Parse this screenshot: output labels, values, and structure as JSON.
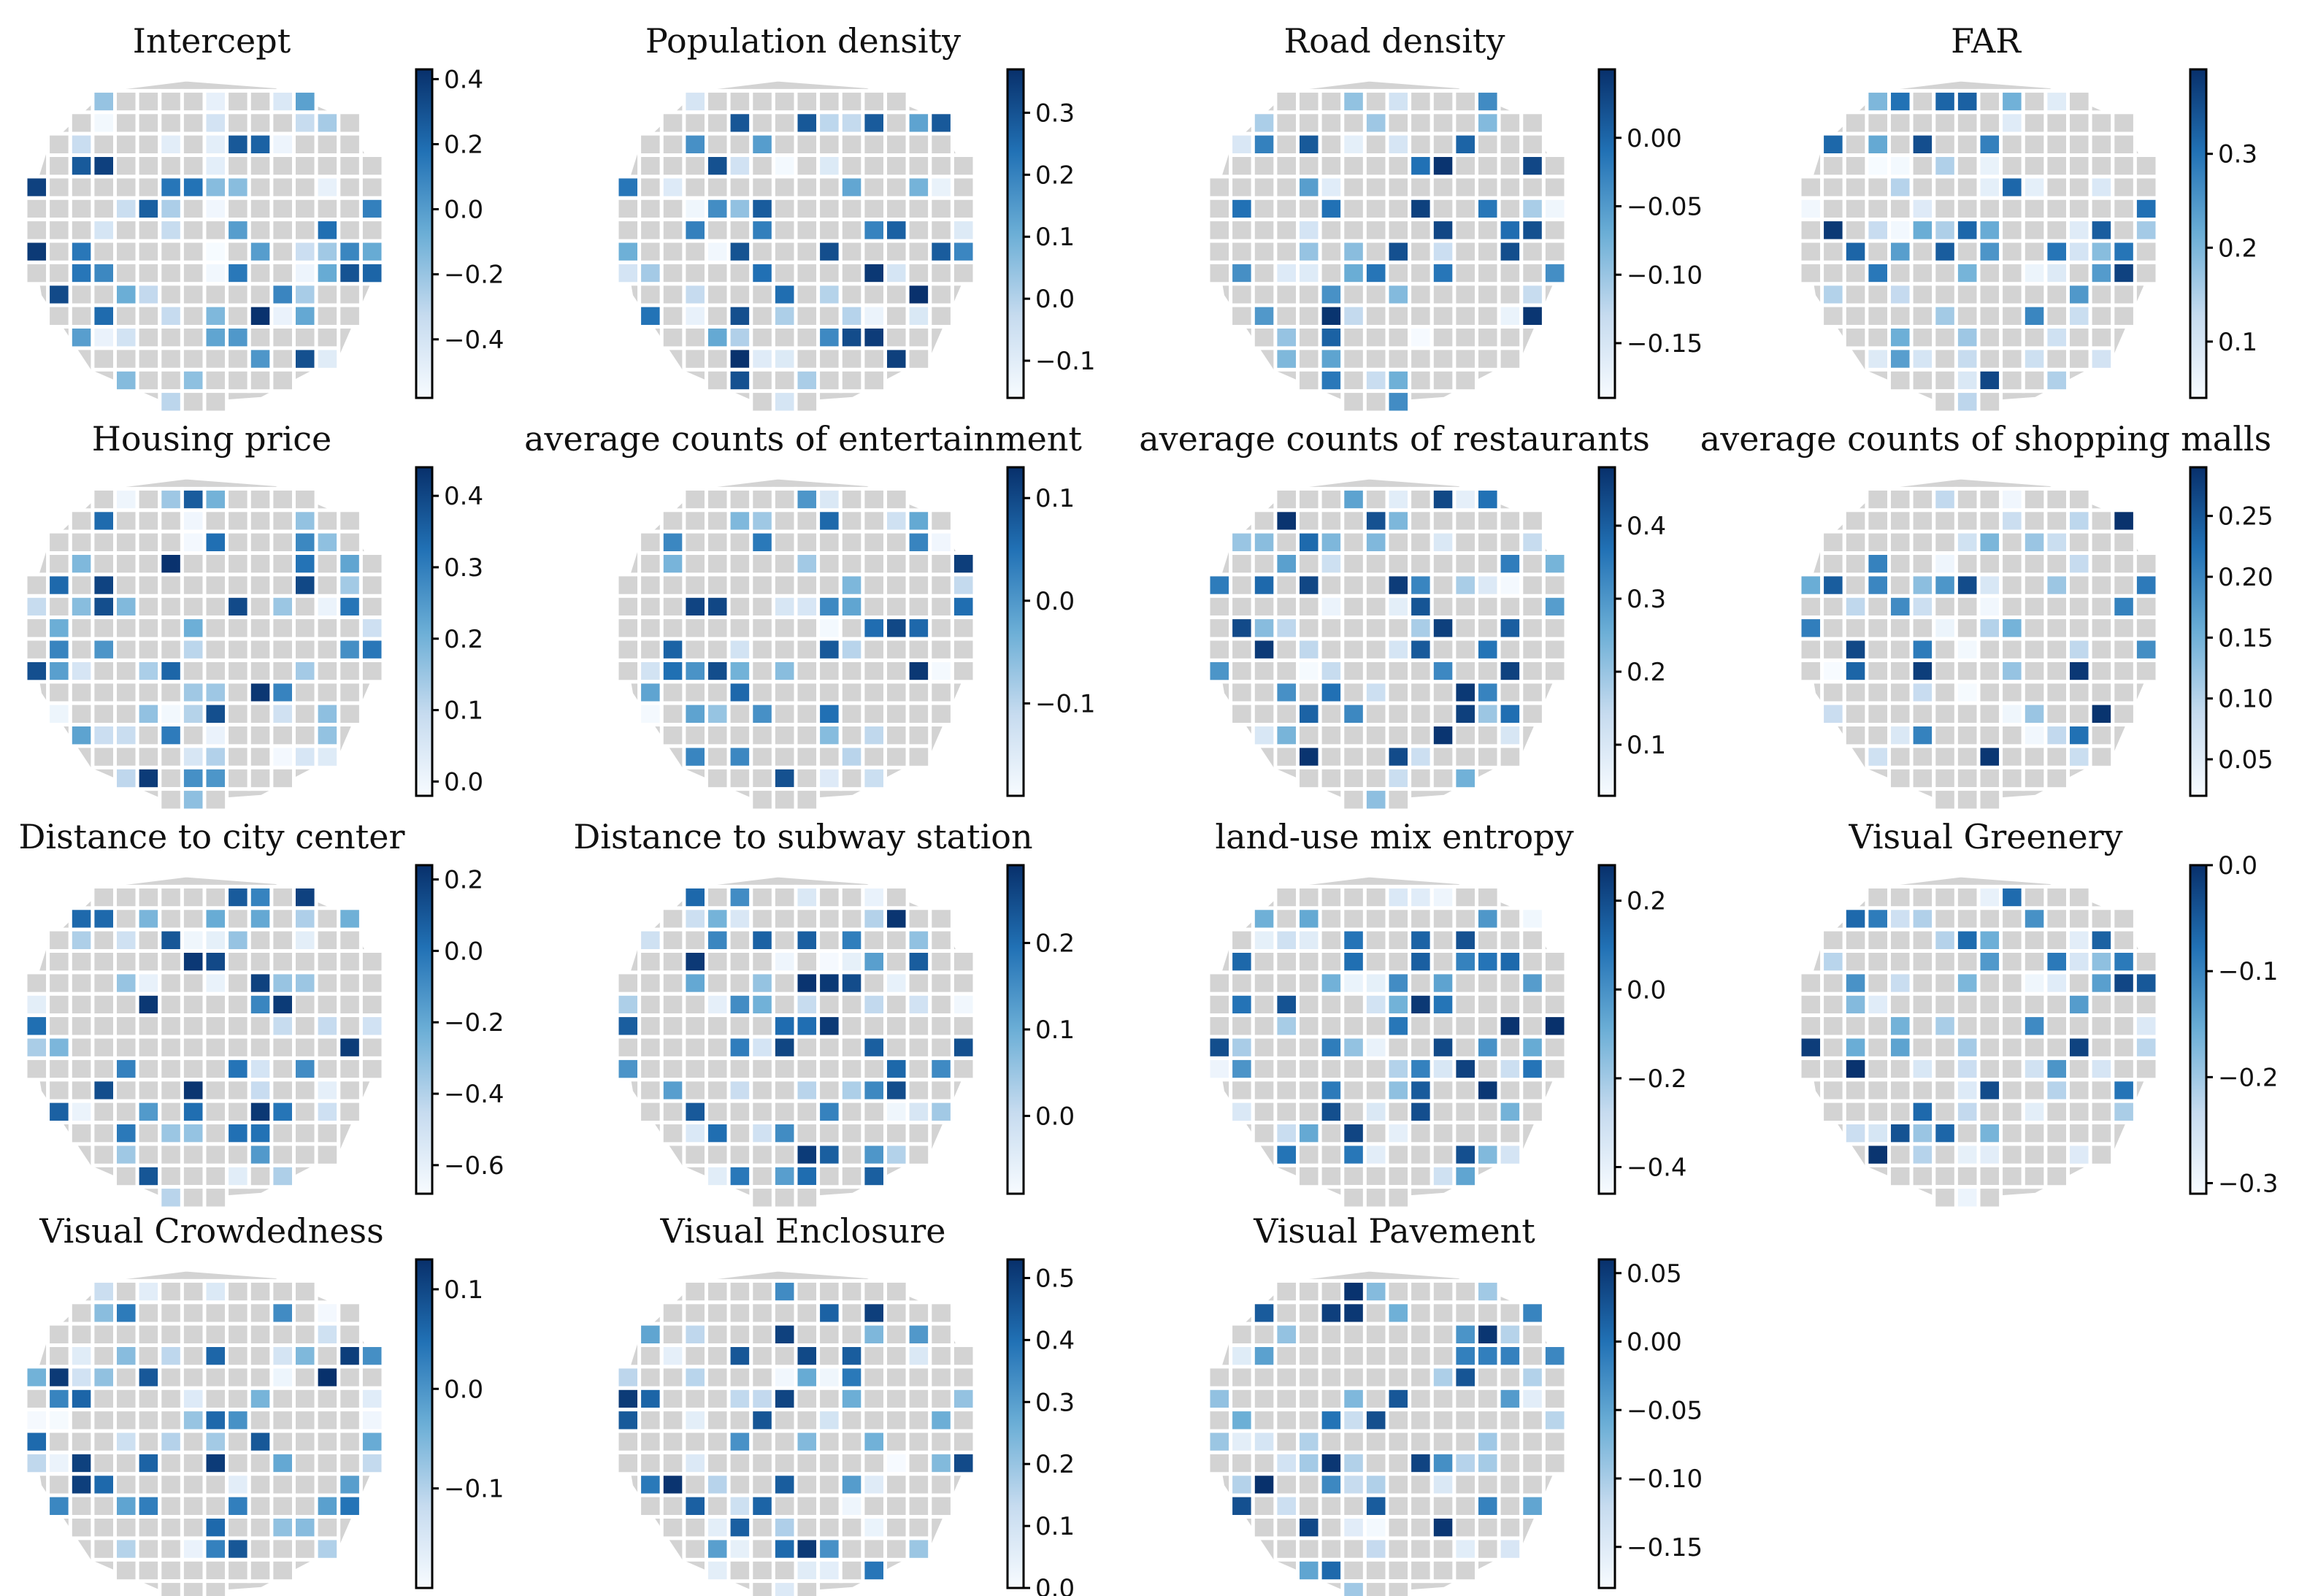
{
  "figure": {
    "description_free": true,
    "colormap": {
      "name": "Blues",
      "low": "#f7fbff",
      "mid": "#6baed6",
      "high": "#08306b",
      "no_data": "#d3d3d3",
      "boundary": "#ffffff"
    }
  },
  "chart_data": [
    {
      "type": "choropleth",
      "title": "Intercept",
      "colorbar": {
        "min": -0.58,
        "max": 0.43,
        "ticks": [
          "0.4",
          "0.2",
          "0.0",
          "−0.2",
          "−0.4"
        ],
        "tick_values": [
          0.4,
          0.2,
          0.0,
          -0.2,
          -0.4
        ]
      }
    },
    {
      "type": "choropleth",
      "title": "Population density",
      "colorbar": {
        "min": -0.16,
        "max": 0.37,
        "ticks": [
          "0.3",
          "0.2",
          "0.1",
          "0.0",
          "−0.1"
        ],
        "tick_values": [
          0.3,
          0.2,
          0.1,
          0.0,
          -0.1
        ]
      }
    },
    {
      "type": "choropleth",
      "title": "Road density",
      "colorbar": {
        "min": -0.19,
        "max": 0.05,
        "ticks": [
          "0.00",
          "−0.05",
          "−0.10",
          "−0.15"
        ],
        "tick_values": [
          0.0,
          -0.05,
          -0.1,
          -0.15
        ]
      }
    },
    {
      "type": "choropleth",
      "title": "FAR",
      "colorbar": {
        "min": 0.04,
        "max": 0.39,
        "ticks": [
          "0.3",
          "0.2",
          "0.1"
        ],
        "tick_values": [
          0.3,
          0.2,
          0.1
        ]
      }
    },
    {
      "type": "choropleth",
      "title": "Housing price",
      "colorbar": {
        "min": -0.02,
        "max": 0.44,
        "ticks": [
          "0.4",
          "0.3",
          "0.2",
          "0.1",
          "0.0"
        ],
        "tick_values": [
          0.4,
          0.3,
          0.2,
          0.1,
          0.0
        ]
      }
    },
    {
      "type": "choropleth",
      "title": "average counts of entertainment",
      "colorbar": {
        "min": -0.19,
        "max": 0.13,
        "ticks": [
          "0.1",
          "0.0",
          "−0.1"
        ],
        "tick_values": [
          0.1,
          0.0,
          -0.1
        ]
      }
    },
    {
      "type": "choropleth",
      "title": "average counts of restaurants",
      "colorbar": {
        "min": 0.03,
        "max": 0.48,
        "ticks": [
          "0.4",
          "0.3",
          "0.2",
          "0.1"
        ],
        "tick_values": [
          0.4,
          0.3,
          0.2,
          0.1
        ]
      }
    },
    {
      "type": "choropleth",
      "title": "average counts of shopping malls",
      "colorbar": {
        "min": 0.02,
        "max": 0.29,
        "ticks": [
          "0.25",
          "0.20",
          "0.15",
          "0.10",
          "0.05"
        ],
        "tick_values": [
          0.25,
          0.2,
          0.15,
          0.1,
          0.05
        ]
      }
    },
    {
      "type": "choropleth",
      "title": "Distance to city center",
      "colorbar": {
        "min": -0.68,
        "max": 0.24,
        "ticks": [
          "0.2",
          "0.0",
          "−0.2",
          "−0.4",
          "−0.6"
        ],
        "tick_values": [
          0.2,
          0.0,
          -0.2,
          -0.4,
          -0.6
        ]
      }
    },
    {
      "type": "choropleth",
      "title": "Distance to subway station",
      "colorbar": {
        "min": -0.09,
        "max": 0.29,
        "ticks": [
          "0.2",
          "0.1",
          "0.0"
        ],
        "tick_values": [
          0.2,
          0.1,
          0.0
        ]
      }
    },
    {
      "type": "choropleth",
      "title": "land-use mix entropy",
      "colorbar": {
        "min": -0.46,
        "max": 0.28,
        "ticks": [
          "0.2",
          "0.0",
          "−0.2",
          "−0.4"
        ],
        "tick_values": [
          0.2,
          0.0,
          -0.2,
          -0.4
        ]
      }
    },
    {
      "type": "choropleth",
      "title": "Visual Greenery",
      "colorbar": {
        "min": -0.31,
        "max": 0.0,
        "ticks": [
          "0.0",
          "−0.1",
          "−0.2",
          "−0.3"
        ],
        "tick_values": [
          0.0,
          -0.1,
          -0.2,
          -0.3
        ]
      }
    },
    {
      "type": "choropleth",
      "title": "Visual Crowdedness",
      "colorbar": {
        "min": -0.2,
        "max": 0.13,
        "ticks": [
          "0.1",
          "0.0",
          "−0.1"
        ],
        "tick_values": [
          0.1,
          0.0,
          -0.1
        ]
      }
    },
    {
      "type": "choropleth",
      "title": "Visual  Enclosure",
      "colorbar": {
        "min": 0.0,
        "max": 0.53,
        "ticks": [
          "0.5",
          "0.4",
          "0.3",
          "0.2",
          "0.1",
          "0.0"
        ],
        "tick_values": [
          0.5,
          0.4,
          0.3,
          0.2,
          0.1,
          0.0
        ]
      }
    },
    {
      "type": "choropleth",
      "title": "Visual Pavement",
      "colorbar": {
        "min": -0.18,
        "max": 0.06,
        "ticks": [
          "0.05",
          "0.00",
          "−0.05",
          "−0.10",
          "−0.15"
        ],
        "tick_values": [
          0.05,
          0.0,
          -0.05,
          -0.1,
          -0.15
        ]
      }
    }
  ]
}
